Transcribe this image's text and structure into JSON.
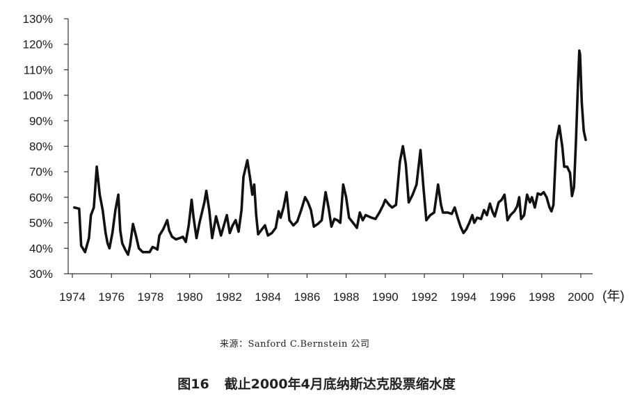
{
  "chart_data": {
    "type": "line",
    "xlabel": "(年)",
    "ylabel": "",
    "ylim": [
      30,
      130
    ],
    "xlim": [
      1974,
      2000.5
    ],
    "yticks": [
      "30%",
      "40%",
      "50%",
      "60%",
      "70%",
      "80%",
      "90%",
      "100%",
      "110%",
      "120%",
      "130%"
    ],
    "ytick_values": [
      30,
      40,
      50,
      60,
      70,
      80,
      90,
      100,
      110,
      120,
      130
    ],
    "xticks": [
      "1974",
      "1976",
      "1978",
      "1980",
      "1982",
      "1984",
      "1986",
      "1988",
      "1990",
      "1992",
      "1994",
      "1996",
      "1998",
      "2000"
    ],
    "xtick_values": [
      1974,
      1976,
      1978,
      1980,
      1982,
      1984,
      1986,
      1988,
      1990,
      1992,
      1994,
      1996,
      1998,
      2000
    ],
    "grid": false,
    "series": [
      {
        "values": [
          [
            1974.1,
            56
          ],
          [
            1974.35,
            55.5
          ],
          [
            1974.45,
            41
          ],
          [
            1974.65,
            38.5
          ],
          [
            1974.85,
            44
          ],
          [
            1974.95,
            53
          ],
          [
            1975.1,
            56
          ],
          [
            1975.25,
            72
          ],
          [
            1975.4,
            61
          ],
          [
            1975.55,
            55
          ],
          [
            1975.7,
            46
          ],
          [
            1975.8,
            42
          ],
          [
            1975.9,
            40
          ],
          [
            1976.05,
            46
          ],
          [
            1976.2,
            55
          ],
          [
            1976.35,
            61
          ],
          [
            1976.45,
            47
          ],
          [
            1976.55,
            42
          ],
          [
            1976.7,
            39.5
          ],
          [
            1976.85,
            37.5
          ],
          [
            1976.95,
            41
          ],
          [
            1977.1,
            49.5
          ],
          [
            1977.25,
            45
          ],
          [
            1977.4,
            40
          ],
          [
            1977.6,
            38.5
          ],
          [
            1977.8,
            38.5
          ],
          [
            1977.95,
            38.5
          ],
          [
            1978.1,
            40.5
          ],
          [
            1978.25,
            40
          ],
          [
            1978.35,
            39.5
          ],
          [
            1978.45,
            45
          ],
          [
            1978.65,
            47.5
          ],
          [
            1978.85,
            51
          ],
          [
            1978.95,
            47
          ],
          [
            1979.1,
            44.5
          ],
          [
            1979.3,
            43.5
          ],
          [
            1979.5,
            44
          ],
          [
            1979.65,
            44.5
          ],
          [
            1979.8,
            42.5
          ],
          [
            1979.95,
            49
          ],
          [
            1980.1,
            59
          ],
          [
            1980.2,
            52
          ],
          [
            1980.35,
            44
          ],
          [
            1980.5,
            50
          ],
          [
            1980.75,
            58
          ],
          [
            1980.85,
            62.5
          ],
          [
            1981.0,
            55
          ],
          [
            1981.15,
            44
          ],
          [
            1981.35,
            52.5
          ],
          [
            1981.5,
            48
          ],
          [
            1981.6,
            45
          ],
          [
            1981.75,
            49
          ],
          [
            1981.9,
            53
          ],
          [
            1982.05,
            46
          ],
          [
            1982.2,
            49
          ],
          [
            1982.35,
            51
          ],
          [
            1982.5,
            46.5
          ],
          [
            1982.65,
            55
          ],
          [
            1982.75,
            68
          ],
          [
            1982.95,
            74.5
          ],
          [
            1983.1,
            67
          ],
          [
            1983.2,
            61
          ],
          [
            1983.3,
            65
          ],
          [
            1983.4,
            53
          ],
          [
            1983.5,
            45.5
          ],
          [
            1983.7,
            47.5
          ],
          [
            1983.85,
            49
          ],
          [
            1984.0,
            45
          ],
          [
            1984.2,
            46
          ],
          [
            1984.4,
            48
          ],
          [
            1984.55,
            54.5
          ],
          [
            1984.65,
            52
          ],
          [
            1984.8,
            56
          ],
          [
            1984.95,
            62
          ],
          [
            1985.1,
            51
          ],
          [
            1985.3,
            49
          ],
          [
            1985.5,
            50.5
          ],
          [
            1985.7,
            55
          ],
          [
            1985.9,
            60
          ],
          [
            1986.05,
            58
          ],
          [
            1986.2,
            55
          ],
          [
            1986.35,
            48.5
          ],
          [
            1986.55,
            49.5
          ],
          [
            1986.75,
            51
          ],
          [
            1986.95,
            62
          ],
          [
            1987.1,
            56
          ],
          [
            1987.25,
            48.5
          ],
          [
            1987.4,
            51.5
          ],
          [
            1987.55,
            51
          ],
          [
            1987.7,
            50
          ],
          [
            1987.85,
            65
          ],
          [
            1988.0,
            60
          ],
          [
            1988.15,
            52
          ],
          [
            1988.35,
            50
          ],
          [
            1988.55,
            48
          ],
          [
            1988.7,
            54
          ],
          [
            1988.85,
            51
          ],
          [
            1989.0,
            53
          ],
          [
            1989.3,
            52
          ],
          [
            1989.5,
            51.5
          ],
          [
            1989.7,
            54
          ],
          [
            1989.9,
            57
          ],
          [
            1990.0,
            59
          ],
          [
            1990.2,
            57
          ],
          [
            1990.35,
            56
          ],
          [
            1990.55,
            57
          ],
          [
            1990.75,
            74
          ],
          [
            1990.9,
            80
          ],
          [
            1991.05,
            73
          ],
          [
            1991.2,
            58
          ],
          [
            1991.4,
            61
          ],
          [
            1991.6,
            65
          ],
          [
            1991.8,
            78.5
          ],
          [
            1991.95,
            64
          ],
          [
            1992.1,
            51
          ],
          [
            1992.3,
            53
          ],
          [
            1992.5,
            54
          ],
          [
            1992.7,
            65
          ],
          [
            1992.85,
            57
          ],
          [
            1992.95,
            54
          ],
          [
            1993.2,
            54
          ],
          [
            1993.4,
            53.5
          ],
          [
            1993.55,
            56
          ],
          [
            1993.7,
            52
          ],
          [
            1993.85,
            48.5
          ],
          [
            1994.0,
            46
          ],
          [
            1994.15,
            47.5
          ],
          [
            1994.3,
            50
          ],
          [
            1994.45,
            53
          ],
          [
            1994.55,
            50
          ],
          [
            1994.7,
            52
          ],
          [
            1994.9,
            51.5
          ],
          [
            1995.05,
            55
          ],
          [
            1995.2,
            53
          ],
          [
            1995.35,
            57.5
          ],
          [
            1995.5,
            54
          ],
          [
            1995.6,
            52.5
          ],
          [
            1995.8,
            58
          ],
          [
            1995.95,
            59
          ],
          [
            1996.1,
            61
          ],
          [
            1996.25,
            51
          ],
          [
            1996.4,
            53
          ],
          [
            1996.6,
            54.5
          ],
          [
            1996.75,
            56.5
          ],
          [
            1996.85,
            60
          ],
          [
            1996.95,
            51.5
          ],
          [
            1997.1,
            53
          ],
          [
            1997.25,
            61
          ],
          [
            1997.4,
            58
          ],
          [
            1997.5,
            60
          ],
          [
            1997.65,
            56
          ],
          [
            1997.8,
            61.5
          ],
          [
            1997.95,
            61
          ],
          [
            1998.1,
            62
          ],
          [
            1998.25,
            60
          ],
          [
            1998.4,
            56
          ],
          [
            1998.5,
            54.5
          ],
          [
            1998.6,
            57
          ],
          [
            1998.75,
            82
          ],
          [
            1998.9,
            88
          ],
          [
            1999.05,
            80
          ],
          [
            1999.15,
            72
          ],
          [
            1999.3,
            72
          ],
          [
            1999.45,
            69.5
          ],
          [
            1999.55,
            60.5
          ],
          [
            1999.65,
            64
          ],
          [
            1999.75,
            82
          ],
          [
            1999.85,
            104
          ],
          [
            1999.92,
            117.5
          ],
          [
            1999.96,
            116
          ],
          [
            2000.05,
            97
          ],
          [
            2000.15,
            86
          ],
          [
            2000.25,
            82.5
          ]
        ]
      }
    ]
  },
  "source_text": "来源：Sanford C.Bernstein 公司",
  "caption": {
    "figure_no": "图16",
    "title": "截止2000年4月底纳斯达克股票缩水度"
  }
}
